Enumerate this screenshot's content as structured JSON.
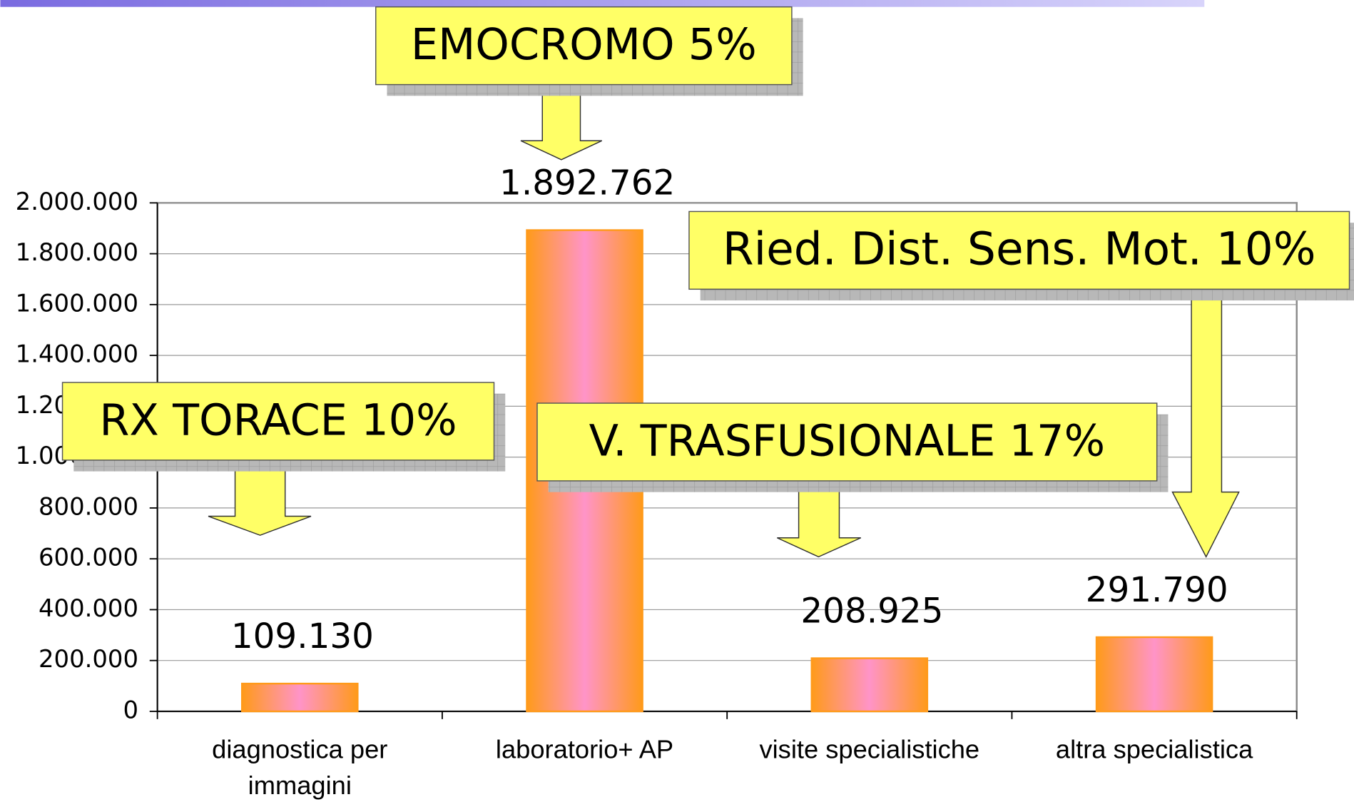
{
  "chart_data": {
    "type": "bar",
    "categories": [
      "diagnostica per immagini",
      "laboratorio+ AP",
      "visite specialistiche",
      "altra specialistica"
    ],
    "values": [
      109130,
      1892762,
      208925,
      291790
    ],
    "value_labels": [
      "109.130",
      "1.892.762",
      "208.925",
      "291.790"
    ],
    "ylim": [
      0,
      2000000
    ],
    "yticks": [
      0,
      {
        "value": 200000,
        "label": "200.000"
      },
      {
        "value": 400000,
        "label": "400.000"
      },
      {
        "value": 600000,
        "label": "600.000"
      },
      {
        "value": 800000,
        "label": "800.000"
      },
      {
        "value": 1000000,
        "label": "1.000.000"
      },
      {
        "value": 1200000,
        "label": "1.200.000"
      },
      {
        "value": 1400000,
        "label": "1.400.000"
      },
      {
        "value": 1600000,
        "label": "1.600.000"
      },
      {
        "value": 1800000,
        "label": "1.800.000"
      },
      {
        "value": 2000000,
        "label": "2.000.000"
      }
    ],
    "grid": true,
    "annotations": [
      "EMOCROMO 5%",
      "Ried. Dist. Sens. Mot. 10%",
      "RX TORACE 10%",
      "V. TRASFUSIONALE 17%"
    ]
  }
}
